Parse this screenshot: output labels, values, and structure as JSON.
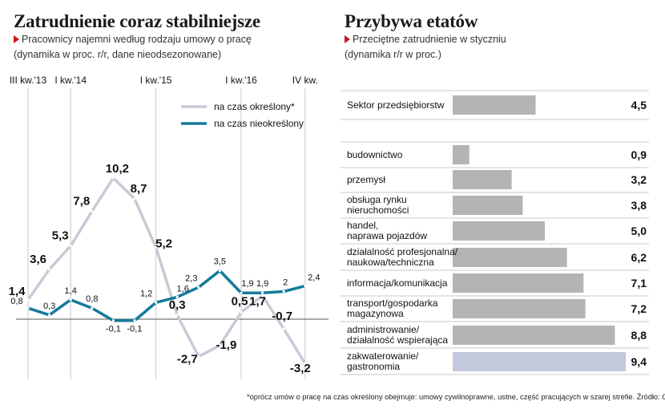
{
  "left": {
    "title": "Zatrudnienie coraz stabilniejsze",
    "subtitle": "Pracownicy najemni według rodzaju umowy o pracę",
    "note": "(dynamika w proc. r/r, dane nieodsezonowane)"
  },
  "right": {
    "title": "Przybywa etatów",
    "subtitle": "Przeciętne zatrudnienie w styczniu",
    "note": "(dynamika r/r w proc.)"
  },
  "footer": "*oprócz umów o pracę na czas określony obejmuje: umowy cywilnoprawne, ustne, część pracujących w szarej strefie. Źródło: GUS",
  "colors": {
    "series_temp": "#c7cbd6",
    "series_perm": "#157a9b",
    "bar": "#b4b4b4",
    "bar_highlight": "#c3c8dc",
    "grid": "#c8c8c8",
    "accent": "#d0121b"
  },
  "chart_data": [
    {
      "type": "line",
      "x_tick_labels": [
        "III kw.'13",
        "I kw.'14",
        "I kw.'15",
        "I kw.'16",
        "IV kw."
      ],
      "grid": "vertical",
      "legend_position": "top-right",
      "ylim": [
        -3.5,
        11
      ],
      "series": [
        {
          "name": "na czas określony*",
          "values": [
            1.4,
            3.6,
            5.3,
            7.8,
            10.2,
            8.7,
            5.2,
            0.3,
            -2.7,
            -1.9,
            0.5,
            1.7,
            -0.7,
            -3.2
          ]
        },
        {
          "name": "na czas nieokreślony",
          "values": [
            0.8,
            0.3,
            1.4,
            0.8,
            -0.1,
            -0.1,
            1.2,
            1.6,
            2.3,
            3.5,
            1.9,
            1.9,
            2.0,
            2.4
          ]
        }
      ]
    },
    {
      "type": "bar",
      "orientation": "horizontal",
      "xlim": [
        0,
        9.4
      ],
      "categories": [
        "Sektor przedsiębiorstw",
        "budownictwo",
        "przemysł",
        "obsługa rynku nieruchomości",
        "handel, naprawa pojazdów",
        "działalność profesjonalna/ naukowa/techniczna",
        "informacja/komunikacja",
        "transport/gospodarka magazynowa",
        "administrowanie/ działalność wspierająca",
        "zakwaterowanie/ gastronomia"
      ],
      "display_labels": [
        [
          "Sektor przedsiębiorstw"
        ],
        [
          "budownictwo"
        ],
        [
          "przemysł"
        ],
        [
          "obsługa rynku",
          "nieruchomości"
        ],
        [
          "handel,",
          "naprawa pojazdów"
        ],
        [
          "działalność profesjonalna/",
          "naukowa/techniczna"
        ],
        [
          "informacja/komunikacja"
        ],
        [
          "transport/gospodarka",
          "magazynowa"
        ],
        [
          "administrowanie/",
          "działalność wspierająca"
        ],
        [
          "zakwaterowanie/",
          "gastronomia"
        ]
      ],
      "values": [
        4.5,
        0.9,
        3.2,
        3.8,
        5.0,
        6.2,
        7.1,
        7.2,
        8.8,
        9.4
      ],
      "value_labels": [
        "4,5",
        "0,9",
        "3,2",
        "3,8",
        "5,0",
        "6,2",
        "7,1",
        "7,2",
        "8,8",
        "9,4"
      ],
      "highlighted": "zakwaterowanie/ gastronomia"
    }
  ]
}
